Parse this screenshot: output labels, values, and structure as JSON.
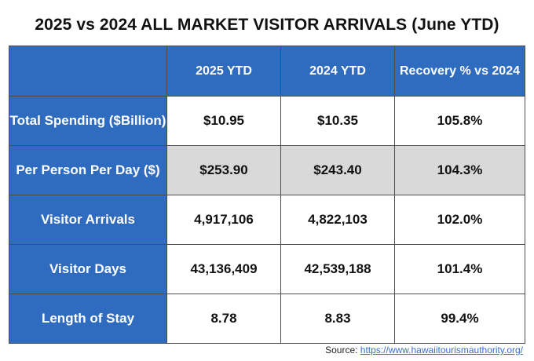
{
  "title": "2025 vs 2024 ALL MARKET VISITOR ARRIVALS (June YTD)",
  "table": {
    "headers": [
      "",
      "2025 YTD",
      "2024 YTD",
      "Recovery % vs 2024"
    ],
    "rows": [
      {
        "label": "Total Spending ($Billion)",
        "y2025": "$10.95",
        "y2024": "$10.35",
        "recovery": "105.8%"
      },
      {
        "label": "Per Person Per Day ($)",
        "y2025": "$253.90",
        "y2024": "$243.40",
        "recovery": "104.3%"
      },
      {
        "label": "Visitor Arrivals",
        "y2025": "4,917,106",
        "y2024": "4,822,103",
        "recovery": "102.0%"
      },
      {
        "label": "Visitor Days",
        "y2025": "43,136,409",
        "y2024": "42,539,188",
        "recovery": "101.4%"
      },
      {
        "label": "Length of Stay",
        "y2025": "8.78",
        "y2024": "8.83",
        "recovery": "99.4%"
      }
    ]
  },
  "source": {
    "prefix": "Source: ",
    "link_text": "https://www.hawaiitourismauthority.org/"
  },
  "colors": {
    "header_blue": "#2f6cbf",
    "shade_gray": "#d9d9d9"
  }
}
